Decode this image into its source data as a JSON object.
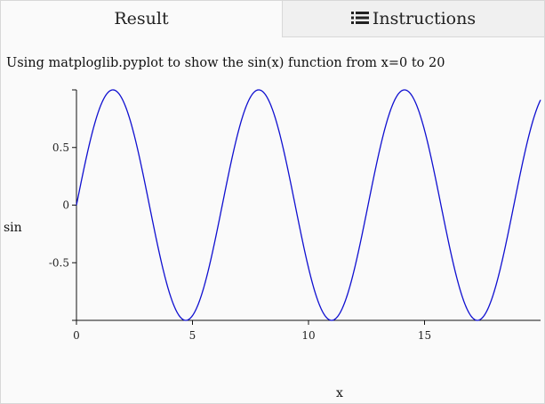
{
  "tabs": {
    "result_label": "Result",
    "instructions_label": "Instructions",
    "instructions_icon": "list-icon"
  },
  "caption": "Using matploglib.pyplot to show the sin(x) function from x=0 to 20",
  "chart_data": {
    "type": "line",
    "function": "sin(x)",
    "x": [
      0,
      0.5,
      1,
      1.5,
      2,
      2.5,
      3,
      3.5,
      4,
      4.5,
      5,
      5.5,
      6,
      6.5,
      7,
      7.5,
      8,
      8.5,
      9,
      9.5,
      10,
      10.5,
      11,
      11.5,
      12,
      12.5,
      13,
      13.5,
      14,
      14.5,
      15,
      15.5,
      16,
      16.5,
      17,
      17.5,
      18,
      18.5,
      19,
      19.5,
      20
    ],
    "xlim": [
      0,
      20
    ],
    "ylim": [
      -1,
      1
    ],
    "xticks": [
      "0",
      "5",
      "10",
      "15"
    ],
    "yticks": [
      "0.5",
      "0",
      "-0.5"
    ],
    "xlabel": "x",
    "ylabel": "sin",
    "title": "",
    "line_color": "#1010d0",
    "grid": false
  }
}
